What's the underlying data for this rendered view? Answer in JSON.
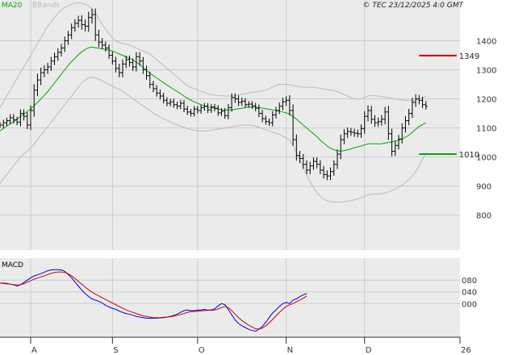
{
  "legend": {
    "ma_label": "MA20",
    "bb_label": "BBands",
    "ma_color": "#00aa00",
    "bb_color": "#bbbbbb"
  },
  "credit": "© TEC 23/12/2025 4:0 GMT",
  "macd_title": "MACD",
  "colors": {
    "price_bar": "#000000",
    "grid": "#cccccc",
    "panel_bg": "#ebebeb",
    "macd_line": "#0000cc",
    "signal_line": "#cc0000",
    "resistance": "#cc0000",
    "support": "#00aa00"
  },
  "chart_data": [
    {
      "type": "ohlc",
      "x_range": [
        0,
        135
      ],
      "ylim": [
        680,
        1540
      ],
      "y_ticks": [
        {
          "value": 800,
          "label": "800"
        },
        {
          "value": 900,
          "label": "900"
        },
        {
          "value": 1000,
          "label": "1000"
        },
        {
          "value": 1100,
          "label": "1100"
        },
        {
          "value": 1200,
          "label": "1200"
        },
        {
          "value": 1300,
          "label": "1300"
        },
        {
          "value": 1400,
          "label": "1400"
        }
      ],
      "x_ticks": [
        {
          "x": 9,
          "label": "A"
        },
        {
          "x": 33,
          "label": "S"
        },
        {
          "x": 58,
          "label": "O"
        },
        {
          "x": 84,
          "label": "N"
        },
        {
          "x": 107,
          "label": "D"
        },
        {
          "x": 135,
          "label": "26"
        }
      ],
      "reference_lines": [
        {
          "value": 1349,
          "label": "1349",
          "color": "#cc0000",
          "x_start": 123,
          "x_end": 134
        },
        {
          "value": 1010,
          "label": "1010",
          "color": "#00aa00",
          "x_start": 123,
          "x_end": 134
        }
      ],
      "close": [
        1110,
        1118,
        1125,
        1135,
        1128,
        1120,
        1150,
        1140,
        1110,
        1160,
        1230,
        1265,
        1290,
        1300,
        1310,
        1330,
        1345,
        1360,
        1375,
        1400,
        1420,
        1445,
        1460,
        1470,
        1455,
        1450,
        1480,
        1490,
        1420,
        1395,
        1385,
        1375,
        1350,
        1330,
        1305,
        1290,
        1320,
        1335,
        1325,
        1310,
        1345,
        1330,
        1300,
        1280,
        1250,
        1235,
        1220,
        1210,
        1195,
        1185,
        1190,
        1180,
        1175,
        1185,
        1165,
        1155,
        1150,
        1165,
        1160,
        1170,
        1175,
        1162,
        1172,
        1168,
        1152,
        1158,
        1142,
        1170,
        1205,
        1200,
        1188,
        1192,
        1180,
        1182,
        1176,
        1168,
        1150,
        1132,
        1122,
        1118,
        1145,
        1160,
        1175,
        1190,
        1195,
        1160,
        1060,
        1005,
        995,
        975,
        955,
        970,
        985,
        975,
        955,
        940,
        935,
        950,
        975,
        1010,
        1060,
        1080,
        1088,
        1085,
        1082,
        1080,
        1098,
        1140,
        1160,
        1130,
        1118,
        1122,
        1130,
        1155,
        1080,
        1020,
        1040,
        1062,
        1100,
        1125,
        1150,
        1188,
        1200,
        1195,
        1180,
        1175
      ],
      "range": [
        30,
        30,
        30,
        35,
        35,
        30,
        40,
        40,
        40,
        50,
        60,
        60,
        50,
        45,
        40,
        40,
        40,
        40,
        40,
        40,
        40,
        40,
        40,
        45,
        50,
        50,
        55,
        60,
        60,
        50,
        40,
        35,
        35,
        35,
        40,
        45,
        45,
        40,
        40,
        40,
        45,
        45,
        40,
        40,
        40,
        35,
        35,
        35,
        30,
        30,
        30,
        30,
        30,
        30,
        30,
        30,
        30,
        30,
        30,
        30,
        30,
        30,
        30,
        30,
        30,
        30,
        30,
        35,
        40,
        40,
        35,
        35,
        30,
        30,
        30,
        30,
        35,
        35,
        30,
        30,
        35,
        35,
        35,
        40,
        40,
        50,
        60,
        50,
        45,
        45,
        40,
        40,
        40,
        40,
        40,
        40,
        40,
        40,
        40,
        45,
        50,
        45,
        40,
        35,
        35,
        35,
        40,
        50,
        50,
        45,
        40,
        40,
        40,
        50,
        60,
        50,
        45,
        40,
        45,
        45,
        45,
        45,
        45,
        40,
        35,
        35
      ],
      "ma20": [
        1090,
        1098,
        1106,
        1114,
        1122,
        1130,
        1140,
        1148,
        1157,
        1165,
        1176,
        1188,
        1200,
        1212,
        1225,
        1240,
        1255,
        1270,
        1285,
        1300,
        1315,
        1328,
        1340,
        1352,
        1362,
        1370,
        1376,
        1378,
        1376,
        1374,
        1372,
        1370,
        1368,
        1364,
        1360,
        1354,
        1350,
        1344,
        1340,
        1334,
        1326,
        1318,
        1308,
        1298,
        1288,
        1280,
        1272,
        1264,
        1256,
        1248,
        1240,
        1232,
        1225,
        1218,
        1210,
        1202,
        1196,
        1190,
        1185,
        1180,
        1176,
        1172,
        1170,
        1168,
        1165,
        1163,
        1162,
        1162,
        1162,
        1164,
        1166,
        1168,
        1170,
        1172,
        1172,
        1172,
        1170,
        1168,
        1166,
        1164,
        1162,
        1160,
        1158,
        1155,
        1152,
        1148,
        1140,
        1130,
        1120,
        1110,
        1100,
        1090,
        1080,
        1070,
        1058,
        1048,
        1038,
        1030,
        1025,
        1022,
        1020,
        1022,
        1025,
        1028,
        1032,
        1035,
        1038,
        1042,
        1045,
        1046,
        1046,
        1045,
        1046,
        1048,
        1050,
        1052,
        1055,
        1058,
        1062,
        1068,
        1075,
        1085,
        1095,
        1105,
        1112,
        1118
      ],
      "bb_upper": [
        1170,
        1190,
        1210,
        1230,
        1250,
        1270,
        1290,
        1310,
        1330,
        1350,
        1370,
        1390,
        1410,
        1430,
        1450,
        1465,
        1480,
        1495,
        1505,
        1515,
        1520,
        1525,
        1530,
        1530,
        1528,
        1525,
        1520,
        1510,
        1495,
        1475,
        1455,
        1440,
        1425,
        1410,
        1400,
        1395,
        1390,
        1388,
        1385,
        1380,
        1375,
        1370,
        1365,
        1360,
        1355,
        1345,
        1335,
        1325,
        1315,
        1305,
        1295,
        1285,
        1275,
        1265,
        1255,
        1245,
        1240,
        1235,
        1230,
        1226,
        1222,
        1218,
        1215,
        1213,
        1212,
        1211,
        1210,
        1210,
        1210,
        1212,
        1214,
        1216,
        1218,
        1220,
        1222,
        1224,
        1226,
        1228,
        1230,
        1235,
        1240,
        1245,
        1250,
        1250,
        1250,
        1248,
        1246,
        1244,
        1242,
        1240,
        1240,
        1240,
        1240,
        1238,
        1236,
        1234,
        1232,
        1230,
        1228,
        1225,
        1220,
        1215,
        1210,
        1205,
        1200,
        1200,
        1200,
        1205,
        1210,
        1212,
        1212,
        1210,
        1208,
        1206,
        1204,
        1202,
        1200,
        1198,
        1196,
        1195,
        1194,
        1194,
        1195,
        1200,
        1205,
        1210
      ],
      "bb_lower": [
        910,
        925,
        940,
        955,
        970,
        985,
        1000,
        1010,
        1020,
        1030,
        1045,
        1060,
        1075,
        1090,
        1105,
        1120,
        1135,
        1150,
        1165,
        1180,
        1195,
        1210,
        1225,
        1240,
        1255,
        1265,
        1272,
        1275,
        1272,
        1268,
        1262,
        1256,
        1250,
        1244,
        1238,
        1232,
        1226,
        1218,
        1210,
        1200,
        1192,
        1184,
        1176,
        1168,
        1160,
        1152,
        1144,
        1138,
        1132,
        1126,
        1120,
        1115,
        1110,
        1106,
        1102,
        1098,
        1095,
        1092,
        1090,
        1090,
        1090,
        1090,
        1092,
        1094,
        1096,
        1098,
        1100,
        1102,
        1104,
        1106,
        1108,
        1110,
        1110,
        1110,
        1108,
        1106,
        1102,
        1098,
        1094,
        1090,
        1086,
        1082,
        1078,
        1072,
        1066,
        1058,
        1040,
        1015,
        990,
        965,
        940,
        915,
        895,
        878,
        865,
        855,
        850,
        848,
        846,
        845,
        845,
        846,
        848,
        850,
        853,
        856,
        860,
        865,
        870,
        872,
        873,
        873,
        874,
        876,
        880,
        885,
        890,
        896,
        903,
        912,
        922,
        935,
        950,
        970,
        992,
        1015
      ]
    },
    {
      "type": "line",
      "title": "MACD",
      "x_range": [
        0,
        135
      ],
      "ylim": [
        -115,
        155
      ],
      "y_ticks": [
        {
          "value": 80,
          "label": "080"
        },
        {
          "value": 40,
          "label": "040"
        },
        {
          "value": 0,
          "label": "000"
        }
      ],
      "series": [
        {
          "values": [
            70,
            70,
            69,
            66,
            64,
            60,
            64,
            72,
            80,
            88,
            94,
            98,
            102,
            107,
            112,
            115,
            116,
            116,
            115,
            110,
            100,
            88,
            74,
            60,
            46,
            34,
            24,
            16,
            12,
            8,
            2,
            -6,
            -12,
            -16,
            -20,
            -26,
            -30,
            -34,
            -36,
            -40,
            -44,
            -46,
            -48,
            -50,
            -50,
            -50,
            -50,
            -49,
            -48,
            -46,
            -44,
            -40,
            -36,
            -30,
            -24,
            -22,
            -24,
            -24,
            -22,
            -22,
            -20,
            -22,
            -22,
            -18,
            -8,
            0,
            -4,
            -20,
            -38,
            -56,
            -68,
            -76,
            -82,
            -88,
            -92,
            -94,
            -88,
            -78,
            -64,
            -48,
            -32,
            -22,
            -10,
            0,
            4,
            0,
            12,
            16,
            24,
            30,
            34
          ]
        },
        {
          "values": [
            70,
            69,
            67,
            66,
            65,
            63,
            64,
            68,
            73,
            78,
            83,
            87,
            91,
            95,
            99,
            103,
            106,
            108,
            108,
            106,
            102,
            95,
            86,
            76,
            66,
            56,
            47,
            39,
            32,
            26,
            20,
            14,
            8,
            2,
            -4,
            -10,
            -16,
            -22,
            -26,
            -30,
            -34,
            -38,
            -42,
            -44,
            -46,
            -48,
            -48,
            -48,
            -47,
            -46,
            -45,
            -43,
            -40,
            -37,
            -34,
            -30,
            -28,
            -27,
            -26,
            -25,
            -24,
            -23,
            -23,
            -22,
            -19,
            -14,
            -10,
            -14,
            -24,
            -36,
            -48,
            -58,
            -66,
            -74,
            -80,
            -86,
            -87,
            -84,
            -76,
            -66,
            -54,
            -42,
            -30,
            -20,
            -10,
            -4,
            0,
            6,
            12,
            18,
            26
          ]
        }
      ]
    }
  ]
}
